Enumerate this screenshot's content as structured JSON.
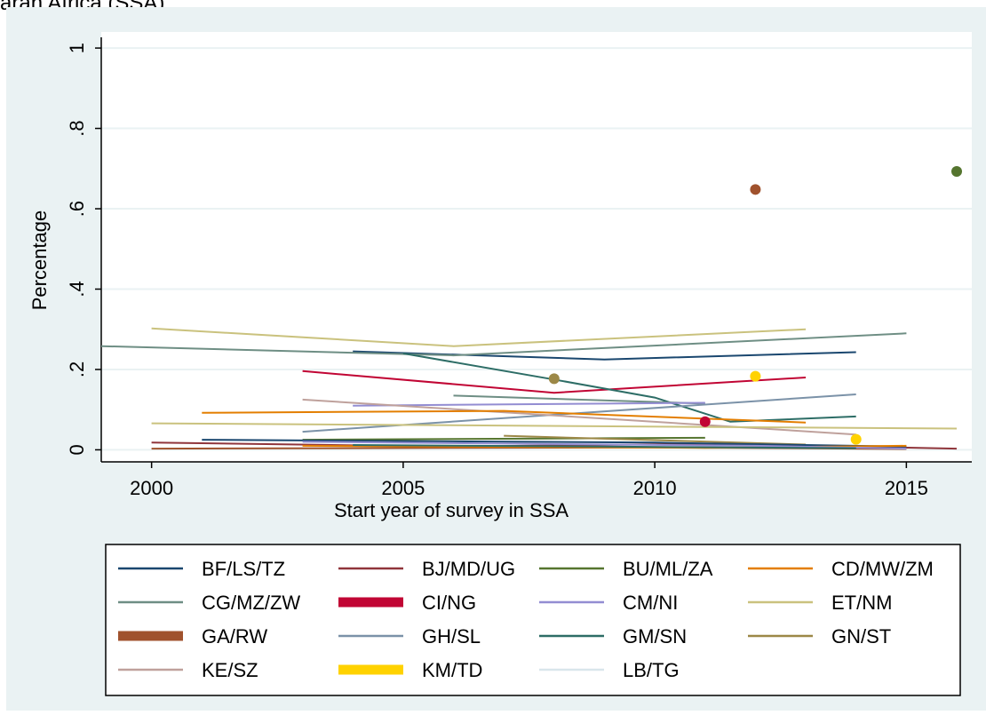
{
  "page_title_fragment": "aran Africa (SSA)",
  "chart_data": {
    "type": "line",
    "xlabel": "Start year of survey in SSA",
    "ylabel": "Percentage",
    "xlim": [
      1999,
      2016.3
    ],
    "ylim": [
      -0.03,
      1.04
    ],
    "x_ticks": [
      2000,
      2005,
      2010,
      2015
    ],
    "x_tick_labels": [
      "2000",
      "2005",
      "2010",
      "2015"
    ],
    "y_ticks": [
      0,
      0.2,
      0.4,
      0.6,
      0.8,
      1
    ],
    "y_tick_labels": [
      "0",
      ".2",
      ".4",
      ".6",
      ".8",
      "1"
    ],
    "grid": true,
    "legend_position": "bottom",
    "legend": [
      {
        "label": "BF/LS/TZ",
        "color": "#1a476f",
        "thick": false
      },
      {
        "label": "BJ/MD/UG",
        "color": "#90353b",
        "thick": false
      },
      {
        "label": "BU/ML/ZA",
        "color": "#55752f",
        "thick": false
      },
      {
        "label": "CD/MW/ZM",
        "color": "#e37e00",
        "thick": false
      },
      {
        "label": "CG/MZ/ZW",
        "color": "#6e8e84",
        "thick": false
      },
      {
        "label": "CI/NG",
        "color": "#c10534",
        "thick": true
      },
      {
        "label": "CM/NI",
        "color": "#938dd2",
        "thick": false
      },
      {
        "label": "ET/NM",
        "color": "#cac27e",
        "thick": false
      },
      {
        "label": "GA/RW",
        "color": "#a0522d",
        "thick": true
      },
      {
        "label": "GH/SL",
        "color": "#7b92a8",
        "thick": false
      },
      {
        "label": "GM/SN",
        "color": "#2d6d66",
        "thick": false
      },
      {
        "label": "GN/ST",
        "color": "#9c8847",
        "thick": false
      },
      {
        "label": "KE/SZ",
        "color": "#bfa19c",
        "thick": false
      },
      {
        "label": "KM/TD",
        "color": "#ffd200",
        "thick": true
      },
      {
        "label": "LB/TG",
        "color": "#d9e6eb",
        "thick": false
      }
    ],
    "series": [
      {
        "color": "#1a476f",
        "x": [
          2004,
          2009,
          2014
        ],
        "y": [
          0.245,
          0.225,
          0.243
        ]
      },
      {
        "color": "#6e8e84",
        "x": [
          1999,
          2006,
          2015
        ],
        "y": [
          0.258,
          0.235,
          0.29
        ]
      },
      {
        "color": "#cac27e",
        "x": [
          2000,
          2006,
          2013
        ],
        "y": [
          0.302,
          0.258,
          0.3
        ]
      },
      {
        "color": "#c10534",
        "x": [
          2003,
          2008,
          2013
        ],
        "y": [
          0.196,
          0.142,
          0.18
        ]
      },
      {
        "color": "#2d6d66",
        "x": [
          2005,
          2008,
          2010,
          2011.5,
          2014
        ],
        "y": [
          0.24,
          0.175,
          0.13,
          0.07,
          0.083
        ]
      },
      {
        "color": "#6e8e84",
        "x": [
          2006,
          2011
        ],
        "y": [
          0.135,
          0.115
        ]
      },
      {
        "color": "#7b92a8",
        "x": [
          2003,
          2014
        ],
        "y": [
          0.045,
          0.138
        ]
      },
      {
        "color": "#938dd2",
        "x": [
          2004,
          2011
        ],
        "y": [
          0.11,
          0.117
        ]
      },
      {
        "color": "#bfa19c",
        "x": [
          2003,
          2014
        ],
        "y": [
          0.125,
          0.038
        ]
      },
      {
        "color": "#e37e00",
        "x": [
          2001,
          2007,
          2013
        ],
        "y": [
          0.092,
          0.097,
          0.068
        ]
      },
      {
        "color": "#cac27e",
        "x": [
          2000,
          2016
        ],
        "y": [
          0.066,
          0.053
        ]
      },
      {
        "color": "#55752f",
        "x": [
          2003,
          2011
        ],
        "y": [
          0.025,
          0.03
        ]
      },
      {
        "color": "#9c8847",
        "x": [
          2007,
          2013
        ],
        "y": [
          0.035,
          0.013
        ]
      },
      {
        "color": "#90353b",
        "x": [
          2000,
          2006,
          2011,
          2016
        ],
        "y": [
          0.018,
          0.008,
          0.015,
          0.003
        ]
      },
      {
        "color": "#1a476f",
        "x": [
          2001,
          2010,
          2015
        ],
        "y": [
          0.025,
          0.018,
          0.008
        ]
      },
      {
        "color": "#a0522d",
        "x": [
          2000,
          2010,
          2015
        ],
        "y": [
          0.003,
          0.006,
          0.002
        ]
      },
      {
        "color": "#e37e00",
        "x": [
          2003,
          2011,
          2015
        ],
        "y": [
          0.01,
          0.005,
          0.01
        ]
      },
      {
        "color": "#938dd2",
        "x": [
          2003,
          2012,
          2015
        ],
        "y": [
          0.02,
          0.01,
          0.003
        ]
      },
      {
        "color": "#2d6d66",
        "x": [
          2004,
          2009,
          2014
        ],
        "y": [
          0.012,
          0.008,
          0.004
        ]
      }
    ],
    "points": [
      {
        "x": 2012,
        "y": 0.648,
        "color": "#a0522d"
      },
      {
        "x": 2016,
        "y": 0.693,
        "color": "#55752f"
      },
      {
        "x": 2008,
        "y": 0.177,
        "color": "#9c8847"
      },
      {
        "x": 2012,
        "y": 0.183,
        "color": "#ffd200"
      },
      {
        "x": 2011,
        "y": 0.07,
        "color": "#c10534"
      },
      {
        "x": 2014,
        "y": 0.026,
        "color": "#ffd200"
      }
    ]
  }
}
